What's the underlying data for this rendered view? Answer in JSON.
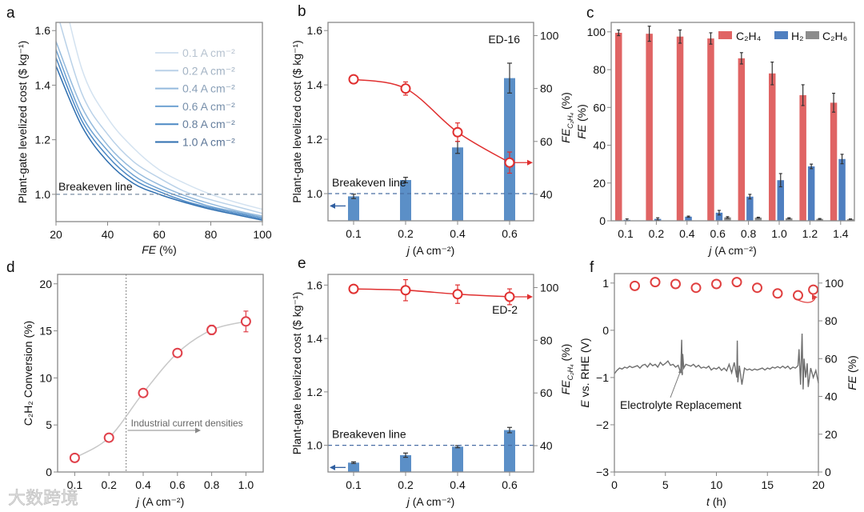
{
  "watermark": "大数跨境",
  "chart_data": [
    {
      "panel": "a",
      "type": "line",
      "xlabel": {
        "italic": "FE",
        "rest": " (%)"
      },
      "ylabel": "Plant-gate levelized cost ($ kg⁻¹)",
      "xlim": [
        20,
        100
      ],
      "ylim": [
        0.9,
        1.63
      ],
      "xticks": [
        "20",
        "40",
        "60",
        "80",
        "100"
      ],
      "yticks": [
        "1.0",
        "1.2",
        "1.4",
        "1.6"
      ],
      "x": [
        20,
        30,
        40,
        50,
        60,
        70,
        80,
        90,
        100
      ],
      "series": [
        {
          "name": "0.1 A cm⁻²",
          "color": "#d3e2f0",
          "text_color": "#b7c3d0",
          "values": [
            1.85,
            1.46,
            1.28,
            1.17,
            1.09,
            1.04,
            1.0,
            0.97,
            0.945
          ]
        },
        {
          "name": "0.2 A cm⁻²",
          "color": "#b9d1e8",
          "text_color": "#a3b3c4",
          "values": [
            1.68,
            1.37,
            1.22,
            1.12,
            1.06,
            1.01,
            0.98,
            0.955,
            0.93
          ]
        },
        {
          "name": "0.4 A cm⁻²",
          "color": "#94badd",
          "text_color": "#8aa0b8",
          "values": [
            1.56,
            1.32,
            1.18,
            1.09,
            1.035,
            0.995,
            0.965,
            0.94,
            0.92
          ]
        },
        {
          "name": "0.6 A cm⁻²",
          "color": "#6fa2d2",
          "text_color": "#7890ab",
          "values": [
            1.53,
            1.29,
            1.16,
            1.07,
            1.02,
            0.985,
            0.955,
            0.935,
            0.915
          ]
        },
        {
          "name": "0.8 A cm⁻²",
          "color": "#4c88c4",
          "text_color": "#667f9e",
          "values": [
            1.5,
            1.27,
            1.14,
            1.055,
            1.01,
            0.975,
            0.95,
            0.93,
            0.91
          ]
        },
        {
          "name": "1.0 A cm⁻²",
          "color": "#2f6fb0",
          "text_color": "#5a7496",
          "values": [
            1.47,
            1.25,
            1.12,
            1.04,
            1.0,
            0.97,
            0.945,
            0.925,
            0.905
          ]
        }
      ],
      "hline": {
        "value": 1.0,
        "label": "Breakeven line"
      },
      "legend": "top-right"
    },
    {
      "panel": "b",
      "type": "bar+line",
      "xlabel": {
        "italic": "j",
        "rest": " (A cm⁻²)"
      },
      "ylabel": "Plant-gate levelized cost ($ kg⁻¹)",
      "y2label": {
        "main": "FE",
        "sub": "C₂H₄",
        "rest": " (%)"
      },
      "categories": [
        "0.1",
        "0.2",
        "0.4",
        "0.6"
      ],
      "ylim": [
        0.9,
        1.63
      ],
      "y2lim": [
        30,
        105
      ],
      "yticks": [
        "1.0",
        "1.2",
        "1.4",
        "1.6"
      ],
      "y2ticks": [
        "40",
        "60",
        "80",
        "100"
      ],
      "cost": [
        0.99,
        1.05,
        1.17,
        1.425
      ],
      "cost_err": [
        0.008,
        0.01,
        0.022,
        0.055
      ],
      "fe": [
        83.5,
        80,
        63.5,
        52
      ],
      "fe_err": [
        1.5,
        2.5,
        3.5,
        4
      ],
      "hline": {
        "value": 1.0,
        "label": "Breakeven line"
      },
      "annotation": "ED-16"
    },
    {
      "panel": "c",
      "type": "bar",
      "xlabel": {
        "italic": "j",
        "rest": " (A cm⁻²)"
      },
      "ylabel": {
        "italic": "FE",
        "rest": " (%)"
      },
      "categories": [
        "0.1",
        "0.2",
        "0.4",
        "0.6",
        "0.8",
        "1.0",
        "1.2",
        "1.4"
      ],
      "ylim": [
        0,
        105
      ],
      "yticks": [
        "0",
        "20",
        "40",
        "60",
        "80",
        "100"
      ],
      "series": [
        {
          "name": "C₂H₄",
          "color": "#e06464",
          "values": [
            99.5,
            99,
            97.5,
            96.5,
            86,
            78,
            66.5,
            62.5
          ],
          "err": [
            1.5,
            4,
            3.5,
            3,
            3,
            6,
            5.5,
            5
          ]
        },
        {
          "name": "H₂",
          "color": "#4f7fc0",
          "values": [
            0.5,
            1.0,
            2.2,
            4.3,
            12.8,
            21.5,
            28.8,
            32.7
          ],
          "err": [
            0.5,
            0.6,
            0.3,
            1.2,
            1.2,
            3.5,
            1.2,
            2.5
          ]
        },
        {
          "name": "C₂H₆",
          "color": "#8c8c8c",
          "values": [
            0,
            0,
            0,
            1.8,
            1.7,
            1.4,
            1.0,
            0.9
          ],
          "err": [
            0,
            0,
            0,
            0.4,
            0.2,
            0.2,
            0.2,
            0.1
          ]
        }
      ],
      "legend": "top-right"
    },
    {
      "panel": "d",
      "type": "scatter",
      "xlabel": {
        "italic": "j",
        "rest": " (A cm⁻²)"
      },
      "ylabel": "C₂H₂ Conversion (%)",
      "categories": [
        "0.1",
        "0.2",
        "0.4",
        "0.6",
        "0.8",
        "1.0"
      ],
      "ylim": [
        0,
        21
      ],
      "yticks": [
        "0",
        "5",
        "10",
        "15",
        "20"
      ],
      "values": [
        1.5,
        3.65,
        8.4,
        12.65,
        15.1,
        16.0
      ],
      "err": [
        0.3,
        0.2,
        0.2,
        0.2,
        0.5,
        1.1
      ],
      "vline": {
        "value": 0.3,
        "label": "Industrial current densities"
      }
    },
    {
      "panel": "e",
      "type": "bar+line",
      "xlabel": {
        "italic": "j",
        "rest": " (A cm⁻²)"
      },
      "ylabel": "Plant-gate levelized cost ($ kg⁻¹)",
      "y2label": {
        "main": "FE",
        "sub": "C₂H₄",
        "rest": " (%)"
      },
      "categories": [
        "0.1",
        "0.2",
        "0.4",
        "0.6"
      ],
      "ylim": [
        0.9,
        1.64
      ],
      "y2lim": [
        30,
        105
      ],
      "yticks": [
        "1.0",
        "1.2",
        "1.4",
        "1.6"
      ],
      "y2ticks": [
        "40",
        "60",
        "80",
        "100"
      ],
      "cost": [
        0.935,
        0.963,
        0.995,
        1.057
      ],
      "cost_err": [
        0.003,
        0.008,
        0.004,
        0.01
      ],
      "fe": [
        99.5,
        99,
        97.5,
        96.5
      ],
      "fe_err": [
        1,
        4,
        3.5,
        3
      ],
      "hline": {
        "value": 1.0,
        "label": "Breakeven line"
      },
      "annotation": "ED-2"
    },
    {
      "panel": "f",
      "type": "line+scatter",
      "xlabel": {
        "italic": "t",
        "rest": " (h)"
      },
      "ylabel": {
        "italic": "E",
        "rest": " vs. RHE (V)"
      },
      "y2label": {
        "italic": "FE",
        "rest": " (%)"
      },
      "xlim": [
        0,
        20
      ],
      "ylim": [
        -3,
        1.2
      ],
      "y2lim": [
        0,
        105
      ],
      "xticks": [
        "0",
        "5",
        "10",
        "15",
        "20"
      ],
      "yticks": [
        "−3",
        "−2",
        "−1",
        "0",
        "1"
      ],
      "y2ticks": [
        "0",
        "20",
        "40",
        "60",
        "80",
        "100"
      ],
      "potential": {
        "t": [
          0,
          0.25,
          0.5,
          0.75,
          1,
          1.25,
          1.5,
          1.75,
          2,
          2.25,
          2.5,
          2.75,
          3,
          3.25,
          3.5,
          3.75,
          4,
          4.25,
          4.5,
          4.75,
          5,
          5.25,
          5.5,
          5.75,
          6,
          6.25,
          6.5,
          6.6,
          6.65,
          6.7,
          6.8,
          7,
          7.25,
          7.5,
          7.75,
          8,
          8.25,
          8.5,
          8.75,
          9,
          9.25,
          9.5,
          9.75,
          10,
          10.25,
          10.5,
          10.75,
          11,
          11.25,
          11.5,
          11.75,
          12,
          12.05,
          12.1,
          12.25,
          12.5,
          12.75,
          13,
          13.25,
          13.5,
          13.75,
          14,
          14.25,
          14.5,
          14.75,
          15,
          15.25,
          15.5,
          15.75,
          16,
          16.25,
          16.5,
          16.75,
          17,
          17.25,
          17.5,
          17.75,
          18,
          18.1,
          18.25,
          18.4,
          18.5,
          18.6,
          18.75,
          18.9,
          19,
          19.25,
          19.5,
          19.75,
          20
        ],
        "E": [
          -0.92,
          -0.85,
          -0.8,
          -0.82,
          -0.78,
          -0.8,
          -0.76,
          -0.79,
          -0.77,
          -0.75,
          -0.8,
          -0.74,
          -0.72,
          -0.78,
          -0.7,
          -0.75,
          -0.72,
          -0.78,
          -0.68,
          -0.74,
          -0.7,
          -0.65,
          -0.74,
          -0.72,
          -0.78,
          -0.74,
          -0.9,
          -0.2,
          -0.95,
          -0.5,
          -0.8,
          -0.72,
          -0.74,
          -0.76,
          -0.72,
          -0.78,
          -0.74,
          -0.8,
          -0.78,
          -0.8,
          -0.76,
          -0.84,
          -0.8,
          -0.82,
          -0.78,
          -0.85,
          -0.8,
          -0.86,
          -0.72,
          -0.9,
          -0.68,
          -1.0,
          -0.22,
          -1.1,
          -0.75,
          -1.15,
          -0.8,
          -0.84,
          -0.82,
          -0.85,
          -0.82,
          -0.84,
          -0.82,
          -0.8,
          -0.84,
          -0.8,
          -0.82,
          -0.78,
          -0.8,
          -0.77,
          -0.8,
          -0.76,
          -0.8,
          -0.76,
          -0.82,
          -0.78,
          -0.8,
          -0.75,
          -0.4,
          -1.15,
          -0.07,
          -1.25,
          -0.6,
          -1.0,
          -0.7,
          -1.2,
          -0.8,
          -1.0,
          -0.85,
          -1.12
        ]
      },
      "fe": {
        "t": [
          2,
          4,
          6,
          8,
          10,
          12,
          14,
          16,
          18,
          19.5
        ],
        "values": [
          98.5,
          100.5,
          99.5,
          97.5,
          99.5,
          100.5,
          97.5,
          94.5,
          93.5,
          96.5
        ]
      },
      "annotation": "Electrolyte Replacement"
    }
  ]
}
